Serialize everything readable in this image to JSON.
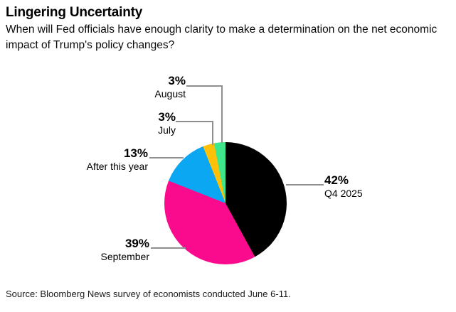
{
  "chart_data": {
    "type": "pie",
    "title": "Lingering Uncertainty",
    "subtitle": "When will Fed officials have enough clarity to make a determination on the net economic impact of Trump's policy changes?",
    "source_note": "Source: Bloomberg News survey of economists conducted June 6-11.",
    "start_angle_deg": 0,
    "direction": "clockwise",
    "legend_position": "none",
    "grid": false,
    "leader_line_color": "#8f8f8f",
    "slices": [
      {
        "label": "Q4 2025",
        "value": 42,
        "pct_label": "42%",
        "color": "#000000"
      },
      {
        "label": "September",
        "value": 39,
        "pct_label": "39%",
        "color": "#FA0A8C"
      },
      {
        "label": "After this year",
        "value": 13,
        "pct_label": "13%",
        "color": "#0BA7F2"
      },
      {
        "label": "July",
        "value": 3,
        "pct_label": "3%",
        "color": "#FFC107"
      },
      {
        "label": "August",
        "value": 3,
        "pct_label": "3%",
        "color": "#3EE68C"
      }
    ]
  }
}
